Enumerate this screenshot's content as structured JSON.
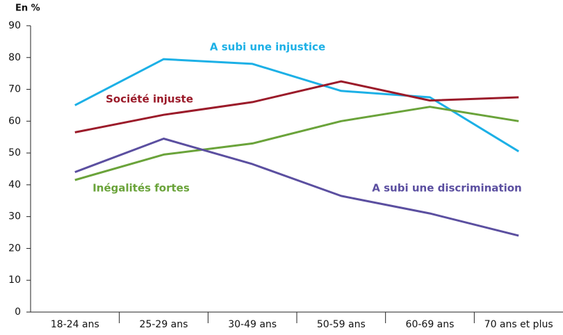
{
  "chart_data": {
    "type": "line",
    "y_axis_label": "En %",
    "categories": [
      "18-24 ans",
      "25-29 ans",
      "30-49 ans",
      "50-59 ans",
      "60-69 ans",
      "70 ans et plus"
    ],
    "ylim": [
      0,
      90
    ],
    "yticks": [
      0,
      10,
      20,
      30,
      40,
      50,
      60,
      70,
      80,
      90
    ],
    "grid": false,
    "series": [
      {
        "name": "A subi une injustice",
        "color": "#1cb0e6",
        "values": [
          65,
          79.5,
          78,
          69.5,
          67.5,
          50.5
        ]
      },
      {
        "name": "Société injuste",
        "color": "#9b1b2a",
        "values": [
          56.5,
          62,
          66,
          72.5,
          66.5,
          67.5
        ]
      },
      {
        "name": "Inégalités fortes",
        "color": "#6aa33a",
        "values": [
          41.5,
          49.5,
          53,
          60,
          64.5,
          60
        ]
      },
      {
        "name": "A subi une discrimination",
        "color": "#5b4fa0",
        "values": [
          44,
          54.5,
          46.5,
          36.5,
          31,
          24
        ]
      }
    ]
  }
}
